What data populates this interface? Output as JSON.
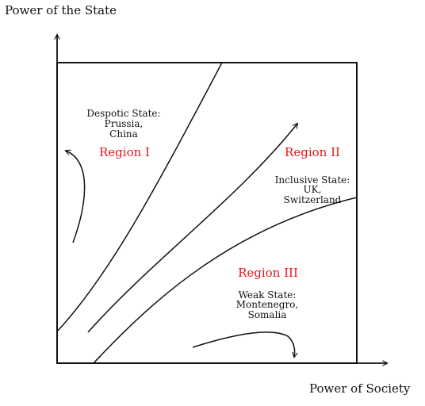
{
  "axes": {
    "y_label": "Power of the State",
    "x_label": "Power of Society"
  },
  "regions": [
    {
      "label": "Region I",
      "state_title": "Despotic State:",
      "examples": [
        "Prussia,",
        "China"
      ]
    },
    {
      "label": "Region II",
      "state_title": "Inclusive State:",
      "examples": [
        "UK,",
        "Switzerland"
      ]
    },
    {
      "label": "Region III",
      "state_title": "Weak State:",
      "examples": [
        "Montenegro,",
        "Somalia"
      ]
    }
  ],
  "colors": {
    "region_label": "#e8141c",
    "line": "#111111"
  }
}
